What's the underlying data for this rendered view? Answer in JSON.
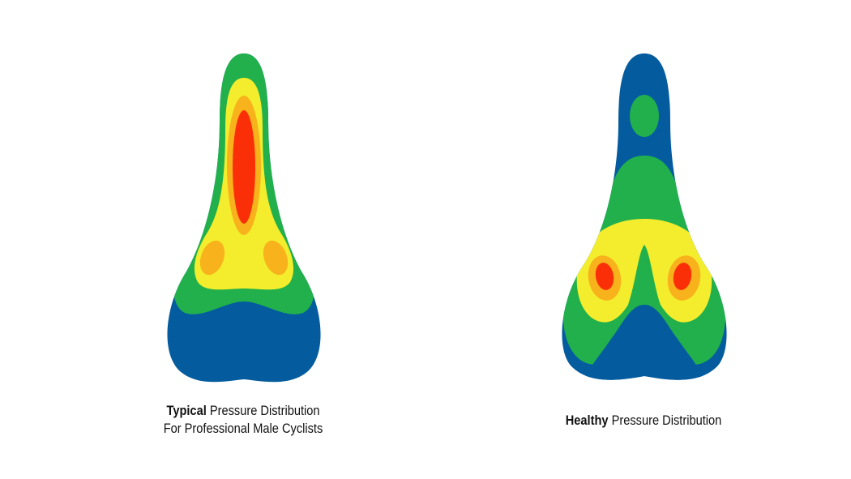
{
  "colors": {
    "blue": "#045c9e",
    "green": "#22b04c",
    "yellow": "#f3ed2d",
    "orange": "#f8b21b",
    "red": "#fb2f07",
    "background": "#ffffff",
    "text": "#111111"
  },
  "legend_order_low_to_high": [
    "blue",
    "green",
    "yellow",
    "orange",
    "red"
  ],
  "diagrams": [
    {
      "caption": {
        "bold": "Typical",
        "rest": " Pressure Distribution",
        "line2": "For Professional Male Cyclists"
      }
    },
    {
      "caption": {
        "bold": "Healthy",
        "rest": " Pressure Distribution",
        "line2": ""
      }
    }
  ]
}
